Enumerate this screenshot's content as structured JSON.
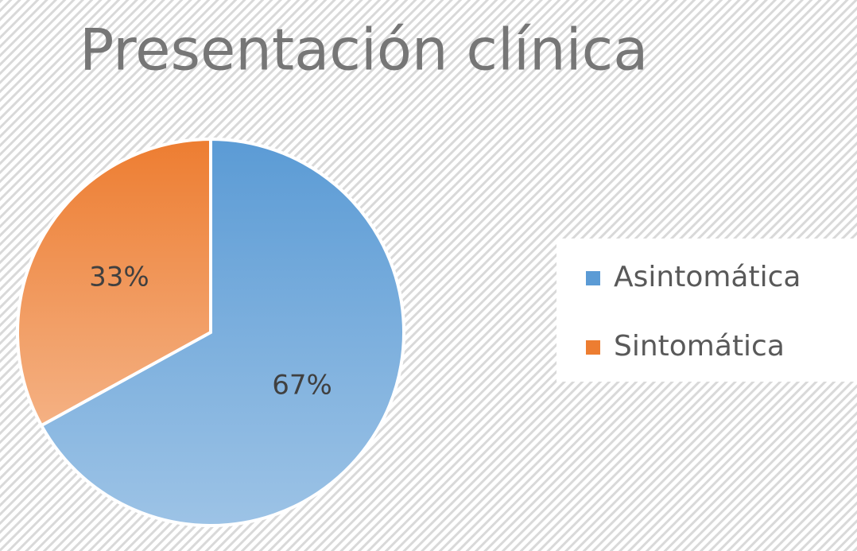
{
  "chart_data": {
    "type": "pie",
    "title": "Presentación clínica",
    "categories": [
      "Asintomática",
      "Sintomática"
    ],
    "values": [
      67,
      33
    ],
    "value_labels": [
      "67%",
      "33%"
    ],
    "colors": [
      "#5b9bd5",
      "#ed7d31"
    ],
    "legend": "right"
  }
}
